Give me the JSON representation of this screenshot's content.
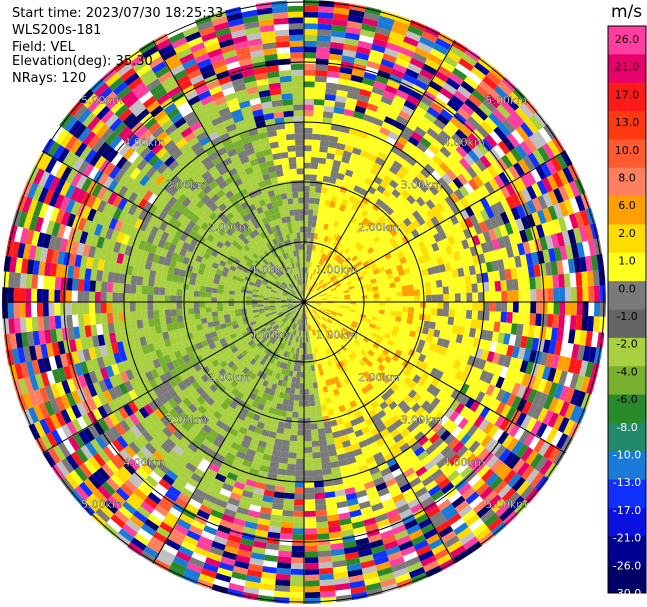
{
  "header": {
    "start_time": "Start time: 2023/07/30 18:25:33",
    "instrument": "WLS200s-181",
    "field": "Field: VEL",
    "elevation": "Elevation(deg): 35.30",
    "nrays": "NRays: 120"
  },
  "colorbar": {
    "unit": "m/s",
    "labels": [
      "26.0",
      "21.0",
      "17.0",
      "13.0",
      "10.0",
      "8.0",
      "6.0",
      "2.0",
      "1.0",
      "0.0",
      "-1.0",
      "-2.0",
      "-4.0",
      "-6.0",
      "-8.0",
      "-10.0",
      "-13.0",
      "-17.0",
      "-21.0",
      "-26.0",
      "-30.0"
    ],
    "colors": [
      "#ff3fa0",
      "#e8006a",
      "#ff1a1a",
      "#ff3a10",
      "#ff5a30",
      "#ff8060",
      "#ffa000",
      "#ffdd00",
      "#ffff20",
      "#7a7a7a",
      "#646464",
      "#a8d040",
      "#7ab030",
      "#2a8a2a",
      "#228a6a",
      "#1a7ad8",
      "#1030ff",
      "#0a10e0",
      "#000090",
      "#000066"
    ]
  },
  "chart_data": {
    "type": "heatmap",
    "projection": "polar (PPI)",
    "field": "VEL",
    "units": "m/s",
    "n_rays": 120,
    "elevation_deg": 35.3,
    "range_ring_labels": [
      "1.00km",
      "2.00km",
      "3.00km",
      "4.00km",
      "5.00km"
    ],
    "color_scale_boundaries": [
      -30.0,
      -26.0,
      -21.0,
      -17.0,
      -13.0,
      -10.0,
      -8.0,
      -6.0,
      -4.0,
      -2.0,
      -1.0,
      0.0,
      1.0,
      2.0,
      6.0,
      8.0,
      10.0,
      13.0,
      17.0,
      21.0,
      26.0
    ],
    "approx_pattern": [
      {
        "range_km": [
          0.0,
          1.0
        ],
        "west_half": "-2.0 to -1.0",
        "east_half": "1.0 to 6.0"
      },
      {
        "range_km": [
          1.0,
          2.0
        ],
        "west_half": "-4.0 to 0.0",
        "east_half": "0.0 to 6.0"
      },
      {
        "range_km": [
          2.0,
          5.0
        ],
        "all": "noise, random values across full scale"
      }
    ]
  }
}
